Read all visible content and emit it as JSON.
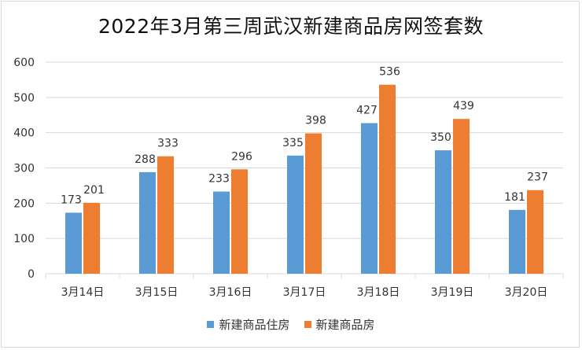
{
  "chart_data": {
    "type": "bar",
    "title": "2022年3月第三周武汉新建商品房网签套数",
    "xlabel": "",
    "ylabel": "",
    "categories": [
      "3月14日",
      "3月15日",
      "3月16日",
      "3月17日",
      "3月18日",
      "3月19日",
      "3月20日"
    ],
    "ylim": [
      0,
      600
    ],
    "yticks": [
      0,
      100,
      200,
      300,
      400,
      500,
      600
    ],
    "grid": true,
    "legend_position": "bottom",
    "series": [
      {
        "name": "新建商品住房",
        "color": "#5b9bd5",
        "values": [
          173,
          288,
          233,
          335,
          427,
          350,
          181
        ]
      },
      {
        "name": "新建商品房",
        "color": "#ed7d31",
        "values": [
          201,
          333,
          296,
          398,
          536,
          439,
          237
        ]
      }
    ]
  }
}
